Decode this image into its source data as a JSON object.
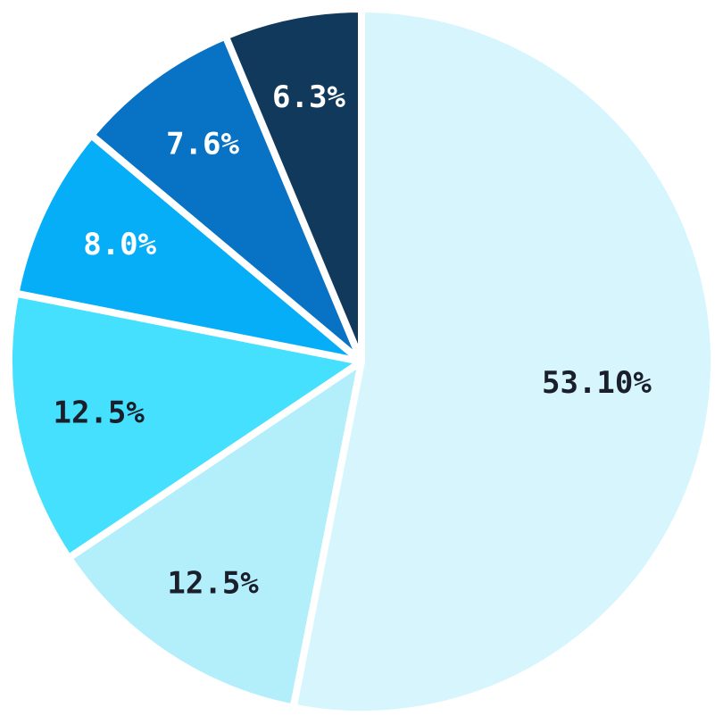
{
  "chart_data": {
    "type": "pie",
    "values": [
      53.1,
      12.5,
      12.5,
      8.0,
      7.6,
      6.3
    ],
    "value_labels": [
      "53.10%",
      "12.5%",
      "12.5%",
      "8.0%",
      "7.6%",
      "6.3%"
    ],
    "colors": [
      "#d6f5fd",
      "#b2effb",
      "#45e0fd",
      "#06aef8",
      "#0872c4",
      "#10395c"
    ]
  }
}
